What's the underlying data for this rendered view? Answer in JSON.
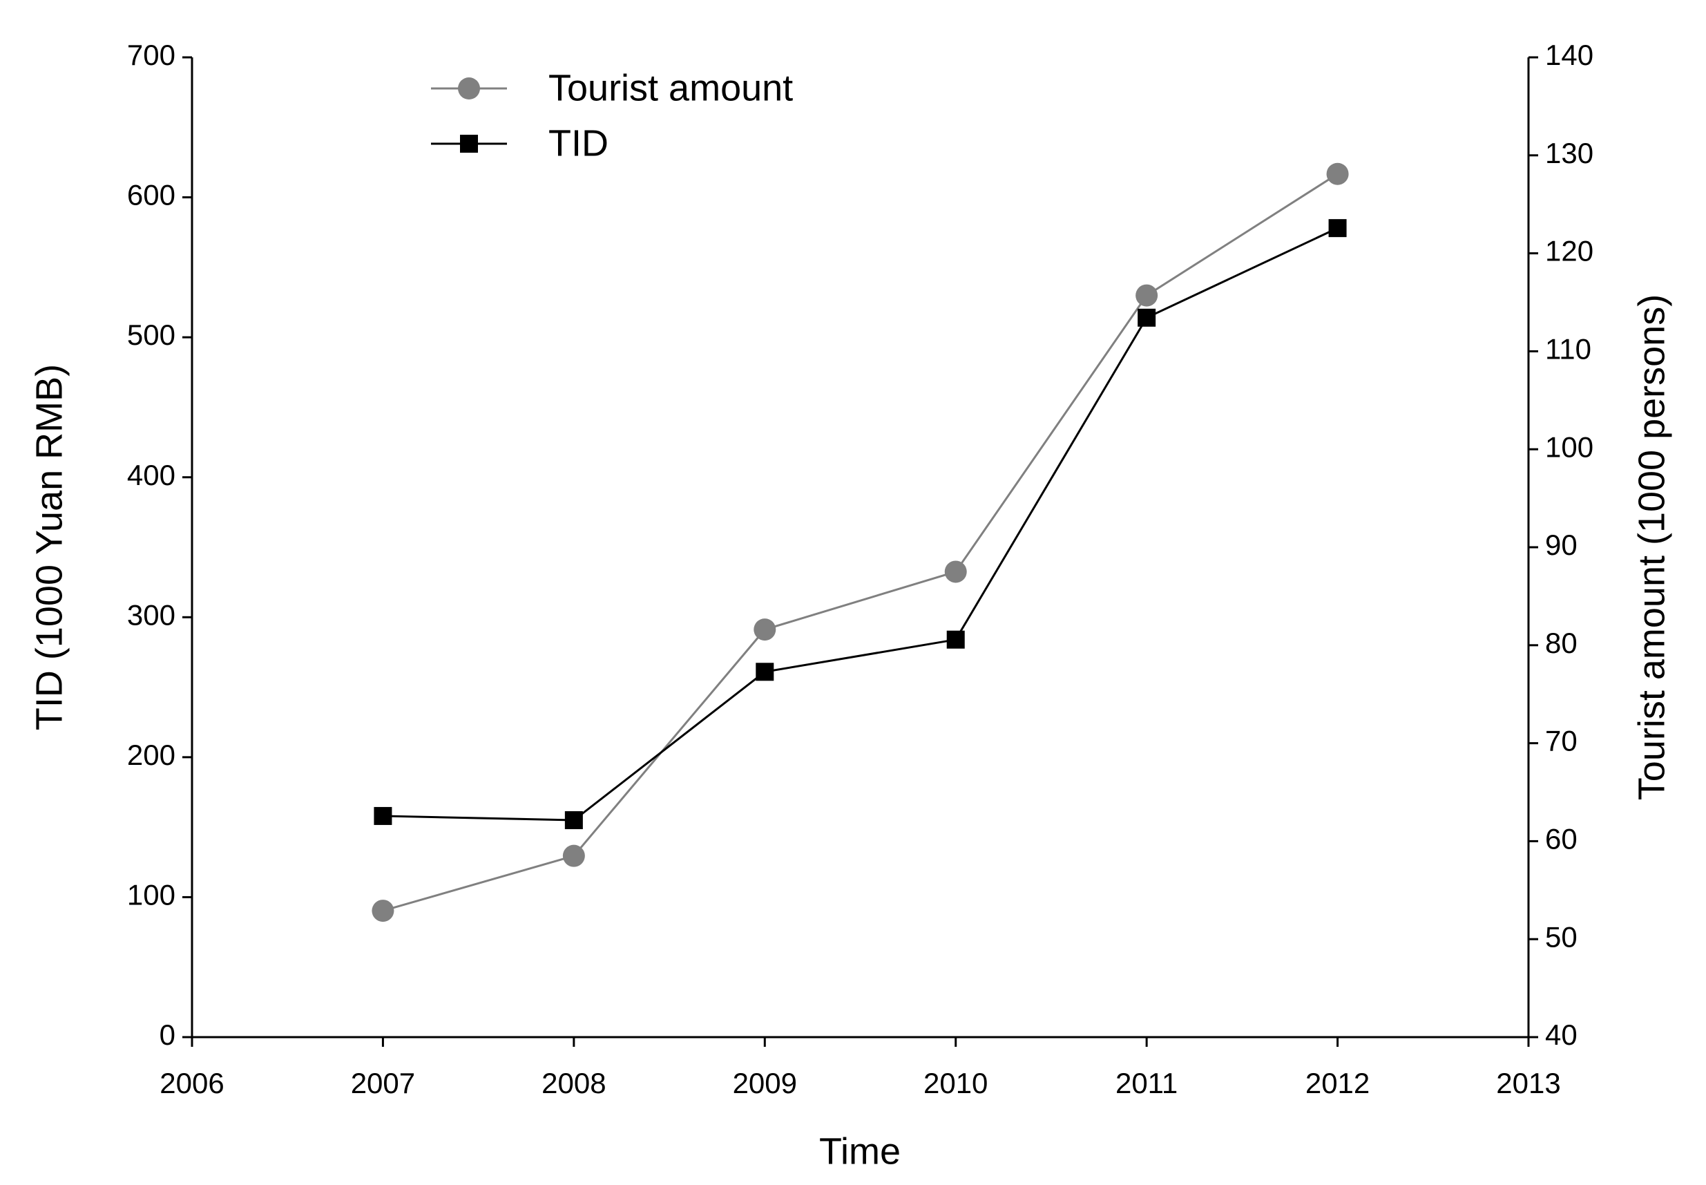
{
  "chart_data": {
    "type": "line",
    "x_label": "Time",
    "y_label": "TID (1000 Yuan RMB)",
    "y2_label": "Tourist amount (1000 persons)",
    "x": [
      2007,
      2008,
      2009,
      2010,
      2011,
      2012
    ],
    "series": [
      {
        "name": "Tourist amount",
        "color": "#808080",
        "marker": "circle",
        "axis": "y2",
        "values": [
          52.9,
          58.5,
          81.6,
          87.5,
          115.7,
          128.1
        ]
      },
      {
        "name": "TID",
        "color": "#000000",
        "marker": "square",
        "values": [
          158,
          155,
          261,
          284,
          514,
          578
        ]
      }
    ],
    "xlim": [
      2006,
      2013
    ],
    "xticks": [
      2006,
      2007,
      2008,
      2009,
      2010,
      2011,
      2012,
      2013
    ],
    "ylim": [
      0,
      700
    ],
    "yticks": [
      0,
      100,
      200,
      300,
      400,
      500,
      600,
      700
    ],
    "y2lim": [
      40,
      140
    ],
    "y2ticks": [
      40,
      50,
      60,
      70,
      80,
      90,
      100,
      110,
      120,
      130,
      140
    ],
    "legend": "upper left",
    "grid": false
  }
}
